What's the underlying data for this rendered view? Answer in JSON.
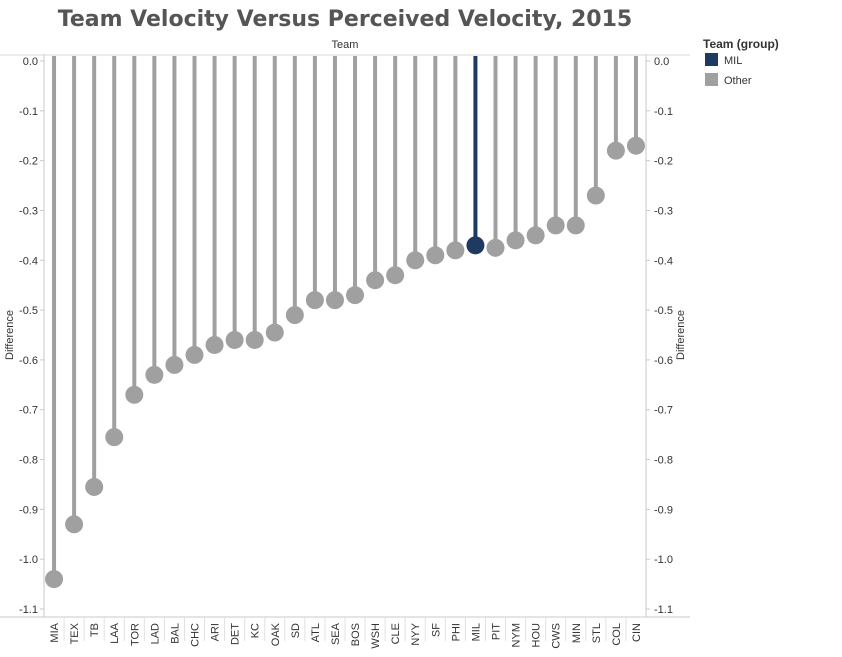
{
  "chart_data": {
    "type": "lollipop",
    "title": "Team Velocity Versus Perceived Velocity, 2015",
    "xlabel": "Team",
    "ylabel": "Difference",
    "ylim": [
      -1.1,
      0.0
    ],
    "yticks": [
      0.0,
      -0.1,
      -0.2,
      -0.3,
      -0.4,
      -0.5,
      -0.6,
      -0.7,
      -0.8,
      -0.9,
      -1.0,
      -1.1
    ],
    "yticklabels": [
      "0.0",
      "-0.1",
      "-0.2",
      "-0.3",
      "-0.4",
      "-0.5",
      "-0.6",
      "-0.7",
      "-0.8",
      "-0.9",
      "-1.0",
      "-1.1"
    ],
    "categories": [
      "MIA",
      "TEX",
      "TB",
      "LAA",
      "TOR",
      "LAD",
      "BAL",
      "CHC",
      "ARI",
      "DET",
      "KC",
      "OAK",
      "SD",
      "ATL",
      "SEA",
      "BOS",
      "WSH",
      "CLE",
      "NYY",
      "SF",
      "PHI",
      "MIL",
      "PIT",
      "NYM",
      "HOU",
      "CWS",
      "MIN",
      "STL",
      "COL",
      "CIN"
    ],
    "values": [
      -1.04,
      -0.93,
      -0.855,
      -0.755,
      -0.67,
      -0.63,
      -0.61,
      -0.59,
      -0.57,
      -0.56,
      -0.56,
      -0.545,
      -0.51,
      -0.48,
      -0.48,
      -0.47,
      -0.44,
      -0.43,
      -0.4,
      -0.39,
      -0.38,
      -0.37,
      -0.375,
      -0.36,
      -0.35,
      -0.33,
      -0.33,
      -0.27,
      -0.18,
      -0.17
    ],
    "highlight": "MIL",
    "legend": {
      "title": "Team (group)",
      "position": "right",
      "items": [
        {
          "label": "MIL",
          "color": "#1f3a60"
        },
        {
          "label": "Other",
          "color": "#a0a0a0"
        }
      ]
    },
    "colors": {
      "highlight": "#1f3a60",
      "other": "#a0a0a0",
      "axis": "#c8c8c8"
    }
  }
}
